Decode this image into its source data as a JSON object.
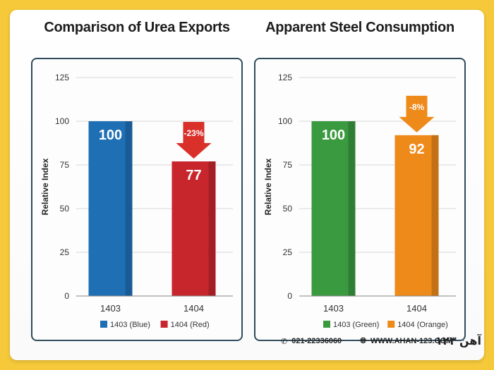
{
  "chart_data": [
    {
      "type": "bar",
      "title": "Comparison of Urea Exports",
      "ylabel": "Relative Index",
      "xlabel": "",
      "ylim": [
        0,
        125
      ],
      "yticks": [
        0,
        25,
        50,
        75,
        100,
        125
      ],
      "categories": [
        "1403",
        "1404"
      ],
      "values": [
        100,
        77
      ],
      "value_labels": [
        "100",
        "77"
      ],
      "colors": [
        "#1f6fb5",
        "#c8262d"
      ],
      "legend": [
        "1403 (Blue)",
        "1404 (Red)"
      ],
      "legend_position": "bottom",
      "annotation": {
        "text": "-23%",
        "target_category": "1404",
        "color": "#d9302a"
      }
    },
    {
      "type": "bar",
      "title": "Apparent Steel Consumption",
      "ylabel": "Relative Index",
      "xlabel": "",
      "ylim": [
        0,
        125
      ],
      "yticks": [
        0,
        25,
        50,
        75,
        100,
        125
      ],
      "categories": [
        "1403",
        "1404"
      ],
      "values": [
        100,
        92
      ],
      "value_labels": [
        "100",
        "92"
      ],
      "colors": [
        "#3a9a3f",
        "#ee8a1a"
      ],
      "legend": [
        "1403 (Green)",
        "1404 (Orange)"
      ],
      "legend_position": "bottom",
      "annotation": {
        "text": "-8%",
        "target_category": "1404",
        "color": "#ee8a1a"
      }
    }
  ],
  "footer": {
    "phone": "021-22336060",
    "website": "WWW.AHAN-123.COM",
    "logo_text": "آهن ۱۲۳",
    "phone_icon": "phone-icon",
    "web_icon": "globe-icon"
  }
}
